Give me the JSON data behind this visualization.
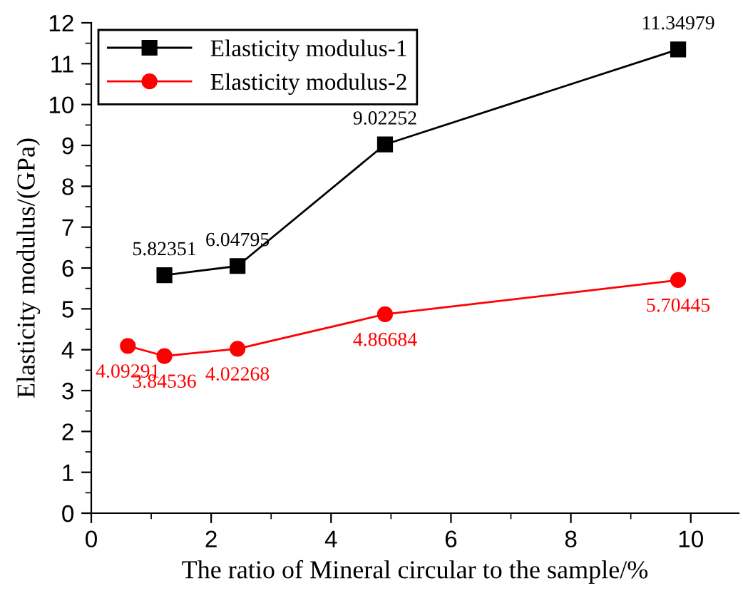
{
  "chart_data": {
    "type": "line",
    "xlabel": "The ratio of Mineral circular to the sample/%",
    "ylabel": "Elasticity modulus/(GPa)",
    "xlim": [
      0,
      10.8
    ],
    "xticks": [
      0,
      2,
      4,
      6,
      8,
      10
    ],
    "ylim": [
      0,
      12
    ],
    "yticks": [
      0,
      1,
      2,
      3,
      4,
      5,
      6,
      7,
      8,
      9,
      10,
      11,
      12
    ],
    "grid": false,
    "legend": "top left",
    "data_labels": true,
    "line_style": "solid",
    "series": [
      {
        "name": "Elasticity modulus-1",
        "color": "#000000",
        "marker": "square",
        "x": [
          1.22,
          2.44,
          4.9,
          9.79
        ],
        "values": [
          5.82351,
          6.04795,
          9.02252,
          11.34979
        ]
      },
      {
        "name": "Elasticity modulus-2",
        "color": "#ff0000",
        "marker": "circle",
        "x": [
          0.61,
          1.22,
          2.44,
          4.9,
          9.79
        ],
        "values": [
          4.09291,
          3.84536,
          4.02268,
          4.86684,
          5.70445
        ]
      }
    ]
  }
}
